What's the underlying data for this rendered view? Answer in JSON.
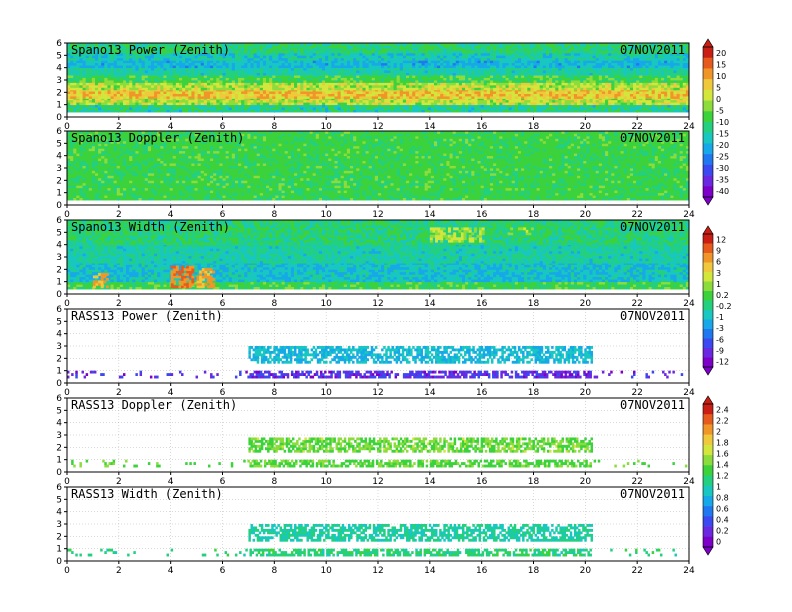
{
  "chart_data": [
    {
      "type": "heatmap",
      "title": "Spano13 Power (Zenith)",
      "date": "07NOV2011",
      "xlim": [
        0,
        24
      ],
      "ylim": [
        0,
        6
      ],
      "x_ticks": [
        "0",
        "2",
        "4",
        "6",
        "8",
        "10",
        "12",
        "14",
        "16",
        "18",
        "20",
        "22",
        "24"
      ],
      "y_ticks": [
        "0",
        "1",
        "2",
        "3",
        "4",
        "5",
        "6"
      ],
      "colorbar": 0,
      "bands": [
        {
          "y": [
            0.4,
            1.0
          ],
          "v": [
            0.35,
            0.55
          ]
        },
        {
          "y": [
            1.0,
            1.5
          ],
          "v": [
            0.55,
            0.75
          ]
        },
        {
          "y": [
            1.5,
            2.2
          ],
          "v": [
            0.65,
            0.85
          ]
        },
        {
          "y": [
            2.2,
            2.8
          ],
          "v": [
            0.55,
            0.75
          ]
        },
        {
          "y": [
            2.8,
            3.4
          ],
          "v": [
            0.45,
            0.6
          ]
        },
        {
          "y": [
            3.4,
            4.0
          ],
          "v": [
            0.35,
            0.5
          ]
        },
        {
          "y": [
            4.0,
            4.6
          ],
          "v": [
            0.28,
            0.42
          ]
        },
        {
          "y": [
            4.6,
            5.2
          ],
          "v": [
            0.32,
            0.48
          ]
        },
        {
          "y": [
            5.2,
            6.0
          ],
          "v": [
            0.4,
            0.55
          ]
        }
      ],
      "blobs": [],
      "density": [
        [
          0,
          24,
          1
        ]
      ]
    },
    {
      "type": "heatmap",
      "title": "Spano13 Doppler (Zenith)",
      "date": "07NOV2011",
      "xlim": [
        0,
        24
      ],
      "ylim": [
        0,
        6
      ],
      "x_ticks": [
        "0",
        "2",
        "4",
        "6",
        "8",
        "10",
        "12",
        "14",
        "16",
        "18",
        "20",
        "22",
        "24"
      ],
      "y_ticks": [
        "0",
        "1",
        "2",
        "3",
        "4",
        "5",
        "6"
      ],
      "colorbar": 0,
      "bands": [
        {
          "y": [
            0.4,
            6.0
          ],
          "v": [
            0.47,
            0.58
          ]
        }
      ],
      "blobs": [],
      "density": [
        [
          0,
          24,
          1
        ]
      ]
    },
    {
      "type": "heatmap",
      "title": "Spano13 Width (Zenith)",
      "date": "07NOV2011",
      "xlim": [
        0,
        24
      ],
      "ylim": [
        0,
        6
      ],
      "x_ticks": [
        "0",
        "2",
        "4",
        "6",
        "8",
        "10",
        "12",
        "14",
        "16",
        "18",
        "20",
        "22",
        "24"
      ],
      "y_ticks": [
        "0",
        "1",
        "2",
        "3",
        "4",
        "5",
        "6"
      ],
      "colorbar": 1,
      "bands": [
        {
          "y": [
            0.4,
            1.0
          ],
          "v": [
            0.45,
            0.6
          ]
        },
        {
          "y": [
            1.0,
            2.5
          ],
          "v": [
            0.3,
            0.45
          ]
        },
        {
          "y": [
            2.5,
            4.0
          ],
          "v": [
            0.35,
            0.5
          ]
        },
        {
          "y": [
            4.0,
            6.0
          ],
          "v": [
            0.4,
            0.55
          ]
        }
      ],
      "blobs": [
        {
          "x": [
            1,
            1.6
          ],
          "y": [
            0.5,
            1.5
          ],
          "v": 0.85
        },
        {
          "x": [
            4,
            4.8
          ],
          "y": [
            0.5,
            2.2
          ],
          "v": 0.9
        },
        {
          "x": [
            5,
            5.6
          ],
          "y": [
            0.5,
            2.0
          ],
          "v": 0.85
        },
        {
          "x": [
            14,
            16
          ],
          "y": [
            4.2,
            5.4
          ],
          "v": 0.7
        },
        {
          "x": [
            17,
            18
          ],
          "y": [
            4.8,
            5.4
          ],
          "v": 0.65
        }
      ],
      "density": [
        [
          0,
          24,
          1
        ]
      ]
    },
    {
      "type": "heatmap",
      "title": "RASS13 Power (Zenith)",
      "date": "07NOV2011",
      "xlim": [
        0,
        24
      ],
      "ylim": [
        0,
        6
      ],
      "x_ticks": [
        "0",
        "2",
        "4",
        "6",
        "8",
        "10",
        "12",
        "14",
        "16",
        "18",
        "20",
        "22",
        "24"
      ],
      "y_ticks": [
        "0",
        "1",
        "2",
        "3",
        "4",
        "5",
        "6"
      ],
      "colorbar": 1,
      "bands": [
        {
          "y": [
            1.6,
            3.0
          ],
          "v": [
            0.3,
            0.42
          ],
          "x": [
            7,
            20.2
          ]
        },
        {
          "y": [
            0.4,
            1.0
          ],
          "v": [
            0.05,
            0.2
          ],
          "x": [
            0,
            24
          ]
        }
      ],
      "blobs": [],
      "density": [
        [
          0,
          6.5,
          0.12
        ],
        [
          6.5,
          7,
          0.2
        ],
        [
          7,
          20.2,
          0.65
        ],
        [
          20.2,
          24,
          0.08
        ]
      ]
    },
    {
      "type": "heatmap",
      "title": "RASS13 Doppler (Zenith)",
      "date": "07NOV2011",
      "xlim": [
        0,
        24
      ],
      "ylim": [
        0,
        6
      ],
      "x_ticks": [
        "0",
        "2",
        "4",
        "6",
        "8",
        "10",
        "12",
        "14",
        "16",
        "18",
        "20",
        "22",
        "24"
      ],
      "y_ticks": [
        "0",
        "1",
        "2",
        "3",
        "4",
        "5",
        "6"
      ],
      "colorbar": 2,
      "bands": [
        {
          "y": [
            1.6,
            2.8
          ],
          "v": [
            0.5,
            0.65
          ],
          "x": [
            7,
            20.2
          ]
        },
        {
          "y": [
            0.4,
            1.0
          ],
          "v": [
            0.5,
            0.6
          ],
          "x": [
            0,
            24
          ]
        }
      ],
      "blobs": [],
      "density": [
        [
          0,
          6.5,
          0.12
        ],
        [
          6.5,
          7,
          0.2
        ],
        [
          7,
          20.2,
          0.65
        ],
        [
          20.2,
          24,
          0.08
        ]
      ]
    },
    {
      "type": "heatmap",
      "title": "RASS13 Width (Zenith)",
      "date": "07NOV2011",
      "xlim": [
        0,
        24
      ],
      "ylim": [
        0,
        6
      ],
      "x_ticks": [
        "0",
        "2",
        "4",
        "6",
        "8",
        "10",
        "12",
        "14",
        "16",
        "18",
        "20",
        "22",
        "24"
      ],
      "y_ticks": [
        "0",
        "1",
        "2",
        "3",
        "4",
        "5",
        "6"
      ],
      "colorbar": 2,
      "bands": [
        {
          "y": [
            1.6,
            3.0
          ],
          "v": [
            0.38,
            0.48
          ],
          "x": [
            7,
            20.2
          ]
        },
        {
          "y": [
            0.4,
            1.0
          ],
          "v": [
            0.42,
            0.52
          ],
          "x": [
            0,
            24
          ]
        }
      ],
      "blobs": [],
      "density": [
        [
          0,
          6.5,
          0.12
        ],
        [
          6.5,
          7,
          0.2
        ],
        [
          7,
          20.2,
          0.65
        ],
        [
          20.2,
          24,
          0.08
        ]
      ]
    }
  ],
  "colorbars": [
    {
      "ticks": [
        "20",
        "15",
        "10",
        "5",
        "0",
        "-5",
        "-10",
        "-15",
        "-20",
        "-25",
        "-30",
        "-35",
        "-40"
      ]
    },
    {
      "ticks": [
        "12",
        "9",
        "6",
        "3",
        "1",
        "0.2",
        "-0.2",
        "-1",
        "-3",
        "-6",
        "-9",
        "-12"
      ]
    },
    {
      "ticks": [
        "2.4",
        "2.2",
        "2",
        "1.8",
        "1.6",
        "1.4",
        "1.2",
        "1",
        "0.8",
        "0.6",
        "0.4",
        "0.2",
        "0"
      ]
    }
  ],
  "colors": {
    "palette": [
      "#7d00c8",
      "#6a28e0",
      "#3c48f0",
      "#1f78f0",
      "#16a8e8",
      "#18c8c0",
      "#22d080",
      "#3cd23c",
      "#8cdc3c",
      "#d2e63c",
      "#f0c83c",
      "#f09628",
      "#e65a1e",
      "#c81e14"
    ],
    "frame": "#000000",
    "grid": "#b4b4b4"
  }
}
